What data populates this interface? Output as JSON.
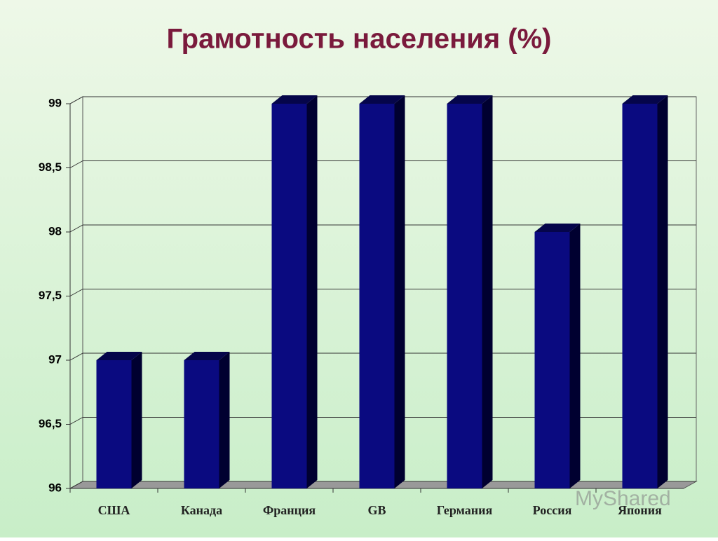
{
  "chart_data": {
    "type": "bar3d",
    "title": "Грамотность населения (%)",
    "categories": [
      "США",
      "Канада",
      "Франция",
      "GB",
      "Германия",
      "Россия",
      "Япония"
    ],
    "values": [
      97,
      97,
      99,
      99,
      99,
      98,
      99
    ],
    "color": "#0a0a80",
    "ylim": [
      96,
      99
    ],
    "yticks": [
      96,
      {
        "value": 96.5,
        "label": "96,5"
      },
      97,
      {
        "value": 97.5,
        "label": "97,5"
      },
      98,
      {
        "value": 98.5,
        "label": "98,5"
      },
      99
    ],
    "grid": true,
    "watermark": "MyShared"
  }
}
